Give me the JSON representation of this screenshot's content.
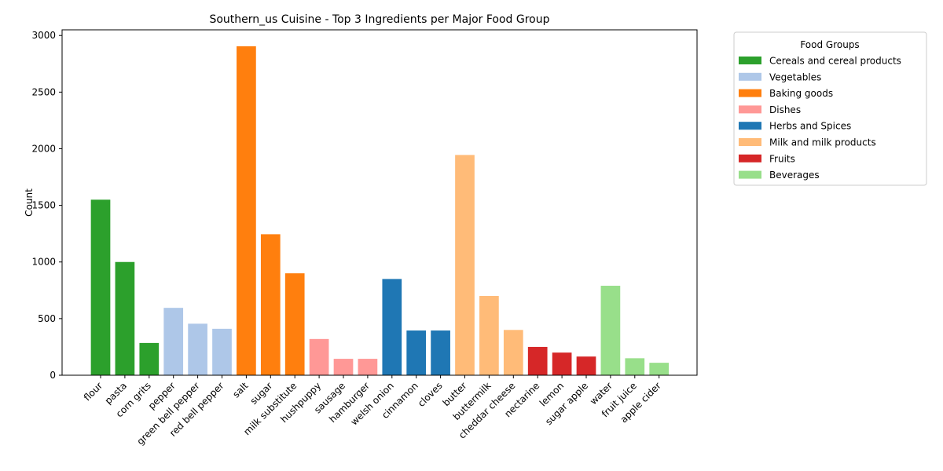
{
  "chart_data": {
    "type": "bar",
    "title": "Southern_us Cuisine - Top 3 Ingredients per Major Food Group",
    "xlabel": "",
    "ylabel": "Count",
    "ylim": [
      0,
      3050
    ],
    "yticks": [
      0,
      500,
      1000,
      1500,
      2000,
      2500,
      3000
    ],
    "grid": false,
    "legend": {
      "title": "Food Groups",
      "placement": "outside-top-right"
    },
    "groups": [
      {
        "name": "Cereals and cereal products",
        "color": "#2ca02c"
      },
      {
        "name": "Vegetables",
        "color": "#aec7e8"
      },
      {
        "name": "Baking goods",
        "color": "#ff7f0e"
      },
      {
        "name": "Dishes",
        "color": "#ff9896"
      },
      {
        "name": "Herbs and Spices",
        "color": "#1f77b4"
      },
      {
        "name": "Milk and milk products",
        "color": "#ffbb78"
      },
      {
        "name": "Fruits",
        "color": "#d62728"
      },
      {
        "name": "Beverages",
        "color": "#98df8a"
      }
    ],
    "bars": [
      {
        "label": "flour",
        "value": 1550,
        "group": 0
      },
      {
        "label": "pasta",
        "value": 1000,
        "group": 0
      },
      {
        "label": "corn grits",
        "value": 285,
        "group": 0
      },
      {
        "label": "pepper",
        "value": 595,
        "group": 1
      },
      {
        "label": "green bell pepper",
        "value": 455,
        "group": 1
      },
      {
        "label": "red bell pepper",
        "value": 410,
        "group": 1
      },
      {
        "label": "salt",
        "value": 2905,
        "group": 2
      },
      {
        "label": "sugar",
        "value": 1245,
        "group": 2
      },
      {
        "label": "milk substitute",
        "value": 900,
        "group": 2
      },
      {
        "label": "hushpuppy",
        "value": 320,
        "group": 3
      },
      {
        "label": "sausage",
        "value": 145,
        "group": 3
      },
      {
        "label": "hamburger",
        "value": 145,
        "group": 3
      },
      {
        "label": "welsh onion",
        "value": 850,
        "group": 4
      },
      {
        "label": "cinnamon",
        "value": 395,
        "group": 4
      },
      {
        "label": "cloves",
        "value": 395,
        "group": 4
      },
      {
        "label": "butter",
        "value": 1945,
        "group": 5
      },
      {
        "label": "buttermilk",
        "value": 700,
        "group": 5
      },
      {
        "label": "cheddar cheese",
        "value": 400,
        "group": 5
      },
      {
        "label": "nectarine",
        "value": 250,
        "group": 6
      },
      {
        "label": "lemon",
        "value": 200,
        "group": 6
      },
      {
        "label": "sugar apple",
        "value": 165,
        "group": 6
      },
      {
        "label": "water",
        "value": 790,
        "group": 7
      },
      {
        "label": "fruit juice",
        "value": 150,
        "group": 7
      },
      {
        "label": "apple cider",
        "value": 110,
        "group": 7
      }
    ]
  }
}
